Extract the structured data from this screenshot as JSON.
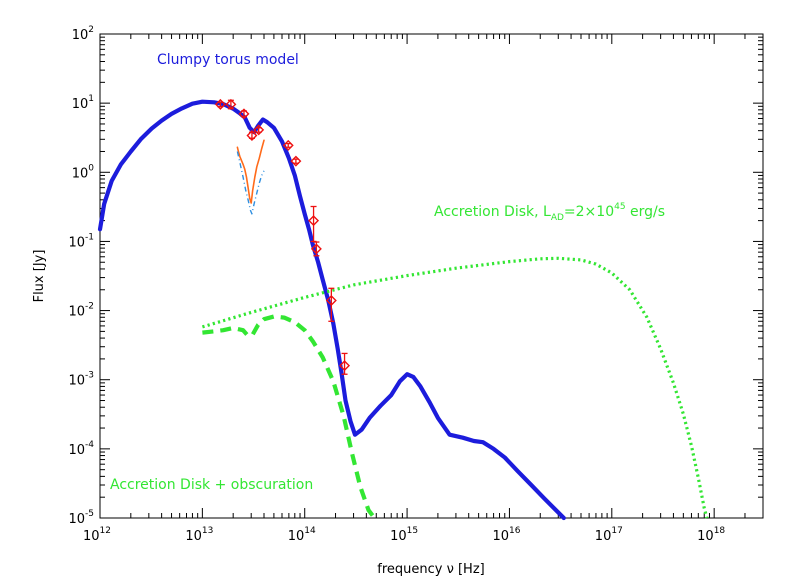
{
  "chart_data": {
    "type": "line",
    "title": "",
    "xlabel": "frequency ν [Hz]",
    "ylabel": "Flux [Jy]",
    "xscale": "log",
    "yscale": "log",
    "xlim": [
      1000000000000.0,
      3e+18
    ],
    "ylim": [
      1e-05,
      100
    ],
    "grid": false,
    "x_ticks": [
      {
        "base": "10",
        "exp": "12",
        "value": 1000000000000.0
      },
      {
        "base": "10",
        "exp": "13",
        "value": 10000000000000.0
      },
      {
        "base": "10",
        "exp": "14",
        "value": 100000000000000.0
      },
      {
        "base": "10",
        "exp": "15",
        "value": 1000000000000000.0
      },
      {
        "base": "10",
        "exp": "16",
        "value": 1e+16
      },
      {
        "base": "10",
        "exp": "17",
        "value": 1e+17
      },
      {
        "base": "10",
        "exp": "18",
        "value": 1e+18
      }
    ],
    "y_ticks": [
      {
        "base": "10",
        "exp": "2",
        "value": 100
      },
      {
        "base": "10",
        "exp": "1",
        "value": 10
      },
      {
        "base": "10",
        "exp": "0",
        "value": 1
      },
      {
        "base": "10",
        "exp": "-1",
        "value": 0.1
      },
      {
        "base": "10",
        "exp": "-2",
        "value": 0.01
      },
      {
        "base": "10",
        "exp": "-3",
        "value": 0.001
      },
      {
        "base": "10",
        "exp": "-4",
        "value": 0.0001
      },
      {
        "base": "10",
        "exp": "-5",
        "value": 1e-05
      }
    ],
    "annotations": {
      "clumpy": "Clumpy torus model",
      "ad_prefix": "Accretion Disk, L",
      "ad_sub": "AD",
      "ad_eq": "=2×10",
      "ad_exp": "45",
      "ad_unit": " erg/s",
      "ad_obsc": "Accretion Disk + obscuration"
    },
    "colors": {
      "clumpy": "#1c1cdc",
      "accretion": "#33e633",
      "data": "#ee1111",
      "spectrum": "#ff6a1a",
      "spectrum_model": "#2f8fe0"
    },
    "series": [
      {
        "id": "clumpy",
        "style": "solid-thick",
        "color": "#1c1cdc",
        "x": [
          1000000000000.0,
          1100000000000.0,
          1300000000000.0,
          1600000000000.0,
          2000000000000.0,
          2500000000000.0,
          3200000000000.0,
          4000000000000.0,
          5000000000000.0,
          6300000000000.0,
          8000000000000.0,
          10000000000000.0,
          13000000000000.0,
          16000000000000.0,
          20000000000000.0,
          23000000000000.0,
          26000000000000.0,
          29000000000000.0,
          32000000000000.0,
          35000000000000.0,
          39000000000000.0,
          43000000000000.0,
          50000000000000.0,
          60000000000000.0,
          70000000000000.0,
          80000000000000.0,
          90000000000000.0,
          100000000000000.0,
          110000000000000.0,
          120000000000000.0,
          135000000000000.0,
          150000000000000.0,
          170000000000000.0,
          190000000000000.0,
          210000000000000.0,
          230000000000000.0,
          250000000000000.0,
          280000000000000.0,
          310000000000000.0,
          360000000000000.0,
          430000000000000.0,
          550000000000000.0,
          700000000000000.0,
          850000000000000.0,
          1000000000000000.0,
          1150000000000000.0,
          1350000000000000.0,
          1650000000000000.0,
          2000000000000000.0,
          2600000000000000.0,
          3500000000000000.0,
          4500000000000000.0,
          5500000000000000.0,
          7000000000000000.0,
          9000000000000000.0,
          1.2e+16,
          1.6e+16,
          2.2e+16,
          3e+16,
          3.4e+16
        ],
        "y": [
          0.15,
          0.35,
          0.75,
          1.3,
          2.0,
          3.0,
          4.3,
          5.6,
          7.0,
          8.4,
          9.8,
          10.5,
          10.3,
          9.7,
          8.3,
          7.2,
          6.2,
          4.4,
          3.8,
          4.7,
          5.8,
          5.3,
          4.4,
          2.8,
          1.6,
          0.9,
          0.45,
          0.25,
          0.15,
          0.09,
          0.05,
          0.028,
          0.014,
          0.0065,
          0.0028,
          0.0012,
          0.0005,
          0.00025,
          0.00016,
          0.00019,
          0.00028,
          0.00042,
          0.0006,
          0.00095,
          0.0012,
          0.0011,
          0.0008,
          0.00048,
          0.00028,
          0.00016,
          0.000145,
          0.00013,
          0.000125,
          0.0001,
          7.5e-05,
          4.8e-05,
          3.1e-05,
          1.9e-05,
          1.2e-05,
          1e-05
        ]
      },
      {
        "id": "accretion-disk",
        "style": "dotted",
        "color": "#33e633",
        "x": [
          10000000000000.0,
          30000000000000.0,
          100000000000000.0,
          300000000000000.0,
          1000000000000000.0,
          3000000000000000.0,
          1e+16,
          2e+16,
          3e+16,
          5e+16,
          7e+16,
          1e+17,
          1.5e+17,
          2.2e+17,
          3e+17,
          4e+17,
          5e+17,
          6e+17,
          7e+17,
          8e+17,
          8.5e+17
        ],
        "y": [
          0.0058,
          0.0094,
          0.0155,
          0.0235,
          0.032,
          0.041,
          0.051,
          0.056,
          0.057,
          0.054,
          0.047,
          0.035,
          0.02,
          0.008,
          0.0028,
          0.0009,
          0.00032,
          0.00011,
          3.8e-05,
          1.4e-05,
          1e-05
        ]
      },
      {
        "id": "accretion-disk-obscuration",
        "style": "dashed",
        "color": "#33e633",
        "x": [
          10000000000000.0,
          13000000000000.0,
          16000000000000.0,
          20000000000000.0,
          25000000000000.0,
          28000000000000.0,
          31000000000000.0,
          35000000000000.0,
          40000000000000.0,
          50000000000000.0,
          63000000000000.0,
          80000000000000.0,
          100000000000000.0,
          120000000000000.0,
          150000000000000.0,
          190000000000000.0,
          240000000000000.0,
          290000000000000.0,
          350000000000000.0,
          420000000000000.0,
          480000000000000.0
        ],
        "y": [
          0.0048,
          0.005,
          0.0052,
          0.0056,
          0.0052,
          0.0043,
          0.0045,
          0.0062,
          0.0075,
          0.0082,
          0.0079,
          0.0068,
          0.0052,
          0.0036,
          0.0021,
          0.00095,
          0.0003,
          8.5e-05,
          2.8e-05,
          1.3e-05,
          1e-05
        ]
      },
      {
        "id": "irs-spectrum",
        "style": "thin",
        "color": "#ff6a1a",
        "x": [
          22000000000000.0,
          22500000000000.0,
          23200000000000.0,
          24000000000000.0,
          25000000000000.0,
          26000000000000.0,
          27000000000000.0,
          28000000000000.0,
          29000000000000.0,
          30000000000000.0,
          31000000000000.0,
          32500000000000.0,
          34000000000000.0,
          36000000000000.0,
          38000000000000.0,
          40000000000000.0
        ],
        "y": [
          2.3,
          2.0,
          1.7,
          1.5,
          1.3,
          1.1,
          0.85,
          0.6,
          0.42,
          0.36,
          0.55,
          0.85,
          1.2,
          1.6,
          2.2,
          2.9
        ]
      },
      {
        "id": "silicate-model",
        "style": "dash-dot",
        "color": "#2f8fe0",
        "x": [
          22000000000000.0,
          23500000000000.0,
          25000000000000.0,
          26500000000000.0,
          28000000000000.0,
          29500000000000.0,
          30500000000000.0,
          32000000000000.0,
          34000000000000.0,
          36000000000000.0,
          38000000000000.0,
          40000000000000.0
        ],
        "y": [
          2.0,
          1.3,
          0.85,
          0.55,
          0.4,
          0.28,
          0.25,
          0.35,
          0.5,
          0.7,
          0.9,
          1.05
        ]
      }
    ],
    "points": [
      {
        "x": 15000000000000.0,
        "y": 9.6,
        "ylo": 8.9,
        "yhi": 10.3
      },
      {
        "x": 19000000000000.0,
        "y": 9.6,
        "ylo": 8.3,
        "yhi": 11.0
      },
      {
        "x": 25500000000000.0,
        "y": 7.0,
        "ylo": 6.4,
        "yhi": 7.7
      },
      {
        "x": 30500000000000.0,
        "y": 3.4,
        "ylo": 3.1,
        "yhi": 3.8
      },
      {
        "x": 35500000000000.0,
        "y": 4.1,
        "ylo": 3.8,
        "yhi": 4.4
      },
      {
        "x": 69000000000000.0,
        "y": 2.45,
        "ylo": 2.3,
        "yhi": 2.6
      },
      {
        "x": 82000000000000.0,
        "y": 1.45,
        "ylo": 1.35,
        "yhi": 1.55
      },
      {
        "x": 122000000000000.0,
        "y": 0.2,
        "ylo": 0.1,
        "yhi": 0.32
      },
      {
        "x": 130000000000000.0,
        "y": 0.078,
        "ylo": 0.062,
        "yhi": 0.098
      },
      {
        "x": 182000000000000.0,
        "y": 0.014,
        "ylo": 0.007,
        "yhi": 0.021
      },
      {
        "x": 245000000000000.0,
        "y": 0.0016,
        "ylo": 0.0012,
        "yhi": 0.0024
      }
    ]
  }
}
